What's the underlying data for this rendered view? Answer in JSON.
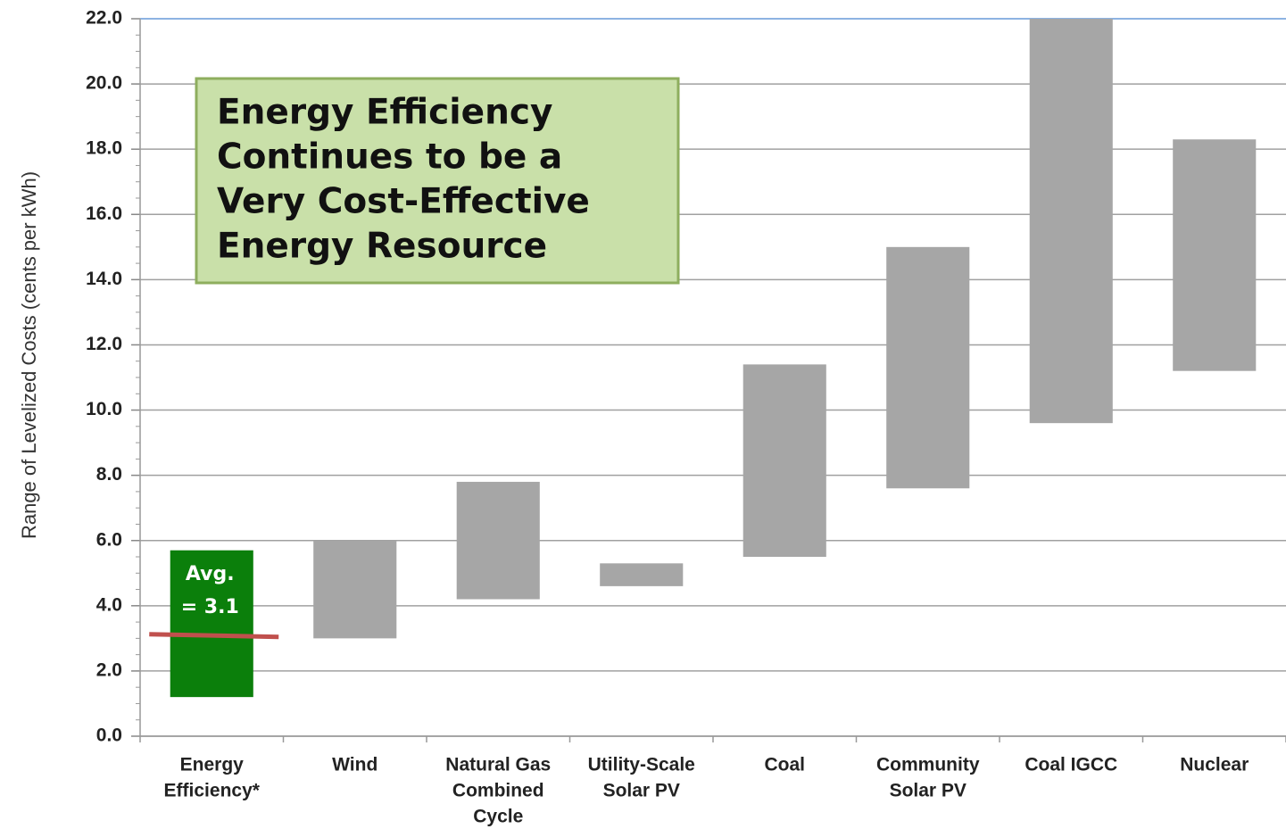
{
  "chart_data": {
    "type": "range",
    "y_label": "Range of Levelized Costs (cents per kWh)",
    "categories": [
      [
        "Energy",
        "Efficiency*"
      ],
      [
        "Wind"
      ],
      [
        "Natural Gas",
        "Combined",
        "Cycle"
      ],
      [
        "Utility-Scale",
        "Solar PV"
      ],
      [
        "Coal"
      ],
      [
        "Community",
        "Solar PV"
      ],
      [
        "Coal IGCC"
      ],
      [
        "Nuclear"
      ]
    ],
    "low": [
      1.2,
      3.0,
      4.2,
      4.6,
      5.5,
      7.6,
      9.6,
      11.2
    ],
    "high": [
      5.7,
      6.0,
      7.8,
      5.3,
      11.4,
      15.0,
      22.0,
      18.3
    ],
    "colors": [
      "#0b7f0b",
      "#a6a6a6",
      "#a6a6a6",
      "#a6a6a6",
      "#a6a6a6",
      "#a6a6a6",
      "#a6a6a6",
      "#a6a6a6"
    ],
    "ylim": [
      0,
      22
    ],
    "yticks": [
      {
        "value": 0,
        "label": "0.0"
      },
      {
        "value": 2,
        "label": "2.0"
      },
      {
        "value": 4,
        "label": "4.0"
      },
      {
        "value": 6,
        "label": "6.0"
      },
      {
        "value": 8,
        "label": "8.0"
      },
      {
        "value": 10,
        "label": "10.0"
      },
      {
        "value": 12,
        "label": "12.0"
      },
      {
        "value": 14,
        "label": "14.0"
      },
      {
        "value": 16,
        "label": "16.0"
      },
      {
        "value": 18,
        "label": "18.0"
      },
      {
        "value": 20,
        "label": "20.0"
      },
      {
        "value": 22,
        "label": "22.0"
      }
    ],
    "grid": true,
    "average": {
      "value": 3.1,
      "color": "#c0504d",
      "label": [
        "Avg.",
        "= 3.1"
      ]
    },
    "annotation": [
      "Energy Efficiency",
      "Continues to be a",
      "Very Cost-Effective",
      "Energy Resource"
    ]
  }
}
